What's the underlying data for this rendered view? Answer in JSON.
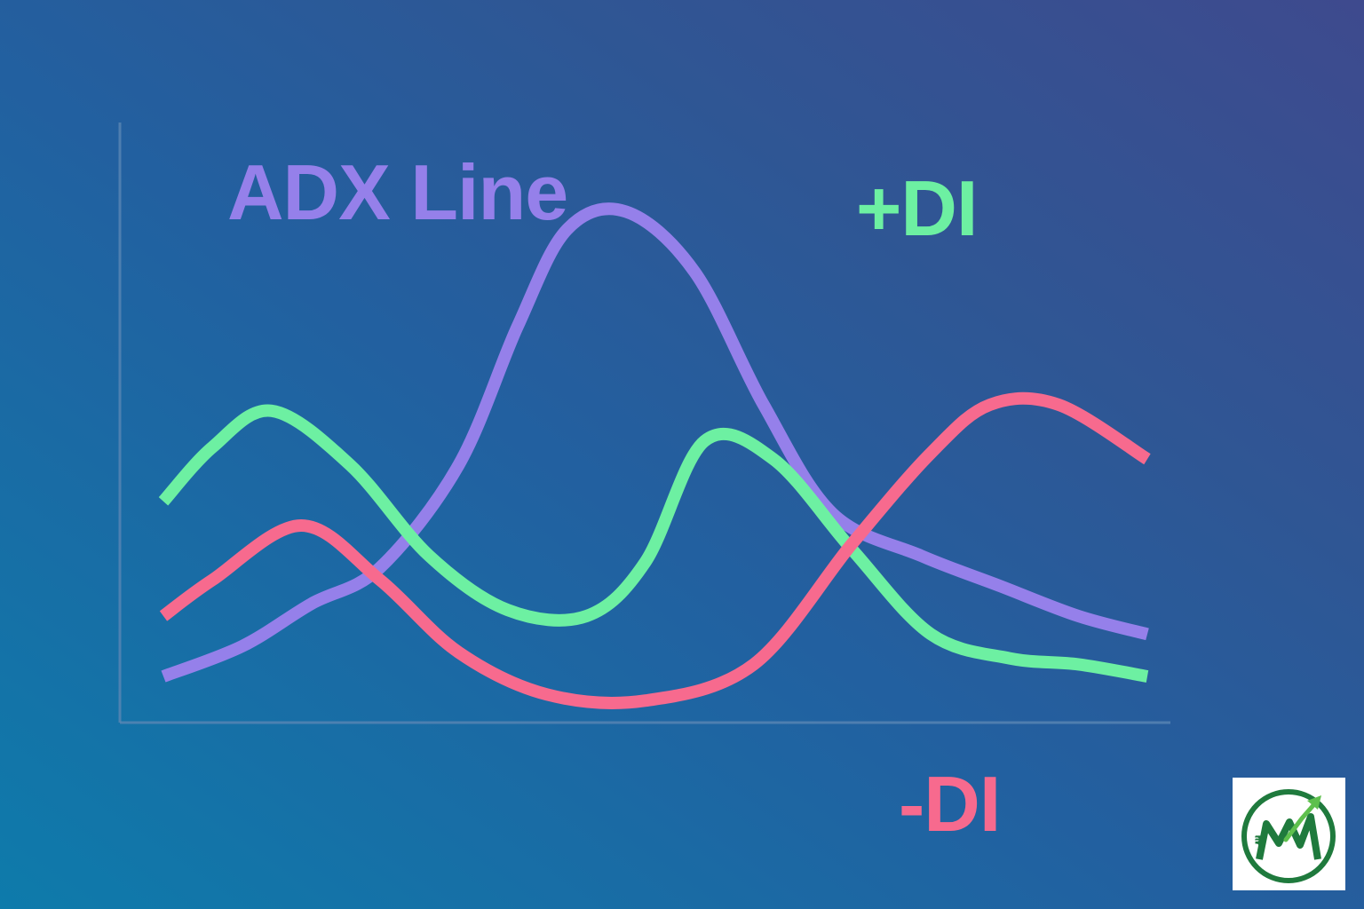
{
  "chart_data": {
    "type": "line",
    "title": "",
    "xlabel": "",
    "ylabel": "",
    "xlim": [
      0,
      100
    ],
    "ylim": [
      0,
      100
    ],
    "grid": false,
    "series": [
      {
        "name": "ADX Line",
        "color": "#9580ea",
        "x": [
          0,
          8,
          15,
          22,
          30,
          36,
          41,
          47,
          54,
          61,
          68,
          77,
          85,
          93,
          100
        ],
        "y": [
          10,
          15,
          22,
          28,
          45,
          68,
          84,
          87,
          77,
          55,
          37,
          30,
          25,
          20,
          17
        ]
      },
      {
        "name": "+DI",
        "color": "#6df0a2",
        "x": [
          0,
          5,
          11,
          19,
          27,
          35,
          43,
          49,
          55,
          62,
          70,
          78,
          86,
          93,
          100
        ],
        "y": [
          39,
          48,
          54,
          45,
          30,
          21,
          20,
          29,
          49,
          46,
          31,
          17,
          13,
          12,
          10
        ]
      },
      {
        "name": "-DI",
        "color": "#f76a8e",
        "x": [
          0,
          5,
          14,
          22,
          30,
          39,
          49,
          60,
          70,
          78,
          84,
          91,
          100
        ],
        "y": [
          20,
          26,
          35,
          26,
          14,
          7,
          6,
          12,
          32,
          47,
          55,
          55,
          46
        ]
      }
    ]
  },
  "labels": {
    "adx": "ADX Line",
    "plus_di": "+DI",
    "minus_di": "-DI"
  },
  "logo": {
    "icon": "rupee-growth-arrow-logo-icon",
    "ring_color": "#1f7a3d",
    "arrow_color": "#5ec04d"
  }
}
